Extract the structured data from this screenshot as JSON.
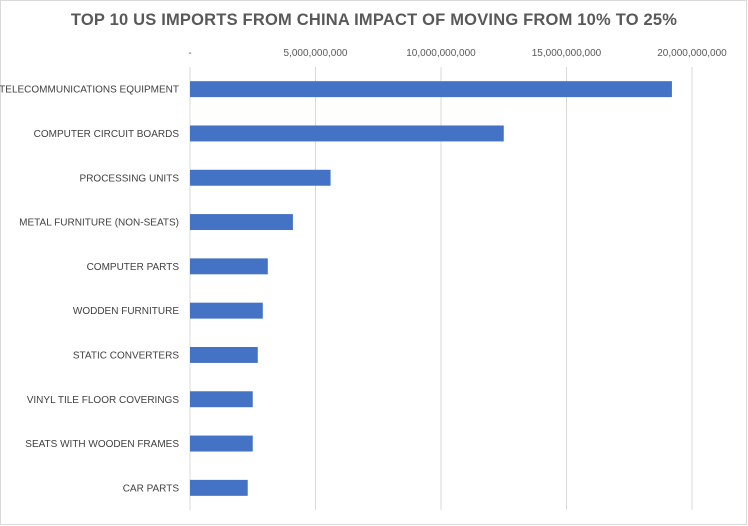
{
  "chart_data": {
    "type": "bar",
    "orientation": "horizontal",
    "title": "TOP 10 US IMPORTS FROM CHINA IMPACT OF MOVING FROM 10% TO 25%",
    "xlabel": "",
    "ylabel": "",
    "xlim": [
      0,
      20000000000
    ],
    "ticks": [
      0,
      5000000000,
      10000000000,
      15000000000,
      20000000000
    ],
    "tick_labels": [
      "-",
      "5,000,000,000",
      "10,000,000,000",
      "15,000,000,000",
      "20,000,000,000"
    ],
    "tick_position": "top",
    "grid": true,
    "legend": "none",
    "bar_color": "#4472c4",
    "grid_color": "#d9d9d9",
    "categories": [
      "TELECOMMUNICATIONS EQUIPMENT",
      "COMPUTER CIRCUIT BOARDS",
      "PROCESSING UNITS",
      "METAL FURNITURE (NON-SEATS)",
      "COMPUTER PARTS",
      "WODDEN FURNITURE",
      "STATIC CONVERTERS",
      "VINYL TILE FLOOR COVERINGS",
      "SEATS WITH WOODEN FRAMES",
      "CAR PARTS"
    ],
    "values": [
      19200000000,
      12500000000,
      5600000000,
      4100000000,
      3100000000,
      2900000000,
      2700000000,
      2500000000,
      2500000000,
      2300000000
    ]
  }
}
